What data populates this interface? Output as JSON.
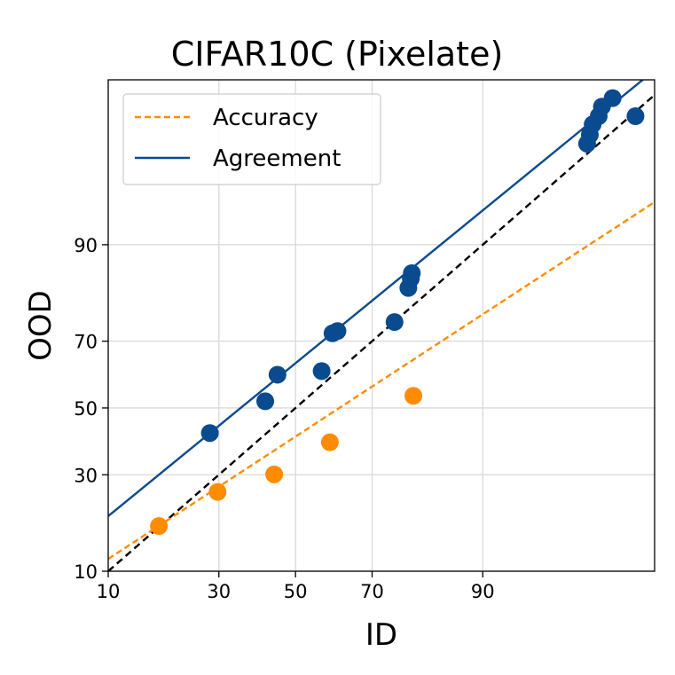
{
  "chart_data": {
    "type": "scatter",
    "title": "CIFAR10C (Pixelate)",
    "xlabel": "ID",
    "ylabel": "OOD",
    "scale": "probit",
    "xlim": [
      10,
      99.3
    ],
    "ylim": [
      10,
      99.5
    ],
    "xticks": [
      10,
      30,
      50,
      70,
      90
    ],
    "yticks": [
      10,
      30,
      50,
      70,
      90
    ],
    "grid": true,
    "legend_position": "top-left",
    "reference_line": {
      "style": "dashed",
      "color": "#000000",
      "description": "y = x"
    },
    "series": [
      {
        "name": "Accuracy",
        "color": "#ff8c00",
        "line_style": "dashed",
        "fit_line": {
          "x": [
            10,
            99.3
          ],
          "y": [
            11.8,
            94.7
          ]
        },
        "points": [
          {
            "x": 17.5,
            "y": 17.7
          },
          {
            "x": 29.7,
            "y": 25.5
          },
          {
            "x": 44.2,
            "y": 30.1
          },
          {
            "x": 59.3,
            "y": 39.4
          },
          {
            "x": 79.0,
            "y": 53.8
          }
        ]
      },
      {
        "name": "Agreement",
        "color": "#0a4a8f",
        "line_style": "solid",
        "fit_line": {
          "x": [
            10,
            99.3
          ],
          "y": [
            19.8,
            99.6
          ]
        },
        "points": [
          {
            "x": 27.9,
            "y": 42.2
          },
          {
            "x": 41.8,
            "y": 52.1
          },
          {
            "x": 45.1,
            "y": 60.3
          },
          {
            "x": 57.1,
            "y": 61.4
          },
          {
            "x": 60.0,
            "y": 72.1
          },
          {
            "x": 61.3,
            "y": 72.7
          },
          {
            "x": 75.1,
            "y": 75.0
          },
          {
            "x": 78.0,
            "y": 82.7
          },
          {
            "x": 78.5,
            "y": 84.5
          },
          {
            "x": 78.7,
            "y": 85.5
          },
          {
            "x": 97.7,
            "y": 98.1
          },
          {
            "x": 97.8,
            "y": 98.4
          },
          {
            "x": 97.9,
            "y": 98.7
          },
          {
            "x": 98.1,
            "y": 98.9
          },
          {
            "x": 98.2,
            "y": 99.1
          },
          {
            "x": 98.5,
            "y": 99.25
          },
          {
            "x": 99.0,
            "y": 98.9
          }
        ]
      }
    ]
  }
}
